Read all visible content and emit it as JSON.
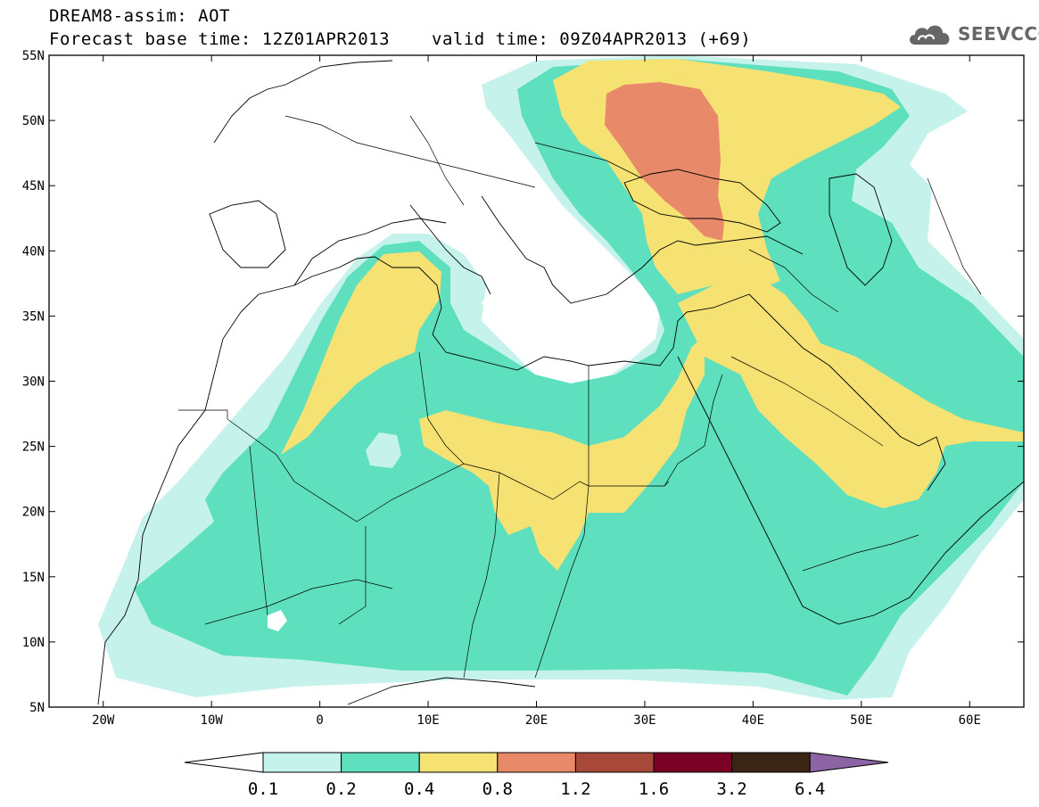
{
  "header": {
    "title": "DREAM8-assim: AOT",
    "base_time": "Forecast base time: 12Z01APR2013",
    "valid_time": "valid time: 09Z04APR2013 (+69)",
    "logo_text": "SEEVCCC",
    "logo_icon": "cloud-icon"
  },
  "map": {
    "projection": "lat-lon",
    "lon_range": [
      -25,
      65
    ],
    "lat_range": [
      5,
      55
    ],
    "lat_ticks": [
      "55N",
      "50N",
      "45N",
      "40N",
      "35N",
      "30N",
      "25N",
      "20N",
      "15N",
      "10N",
      "5N"
    ],
    "lon_ticks": [
      "20W",
      "10W",
      "0",
      "10E",
      "20E",
      "30E",
      "40E",
      "50E",
      "60E"
    ],
    "field": "Aerosol optical thickness (dust)",
    "regions": [
      {
        "level": "0.1-0.2",
        "color": "#c6f2ec",
        "area": "outer dust envelope over Sahel, Arabia, eastern Europe"
      },
      {
        "level": "0.2-0.4",
        "color": "#5ee0bf",
        "area": "Sahara, Sahel, Middle East, Black Sea region"
      },
      {
        "level": "0.4-0.8",
        "color": "#f5e273",
        "area": "Algeria, Libya/Chad, Egypt, Arabia, Ukraine/Russia"
      },
      {
        "level": "0.8-1.2",
        "color": "#e8896a",
        "area": "Ukraine and Black Sea"
      }
    ]
  },
  "colorbar": {
    "labels": [
      "0.1",
      "0.2",
      "0.4",
      "0.8",
      "1.2",
      "1.6",
      "3.2",
      "6.4"
    ],
    "colors": [
      "#c6f2ec",
      "#5ee0bf",
      "#f5e273",
      "#e8896a",
      "#a8483a",
      "#7a0026",
      "#3b2616"
    ],
    "under_color": "#ffffff",
    "over_color": "#8c64a4"
  }
}
